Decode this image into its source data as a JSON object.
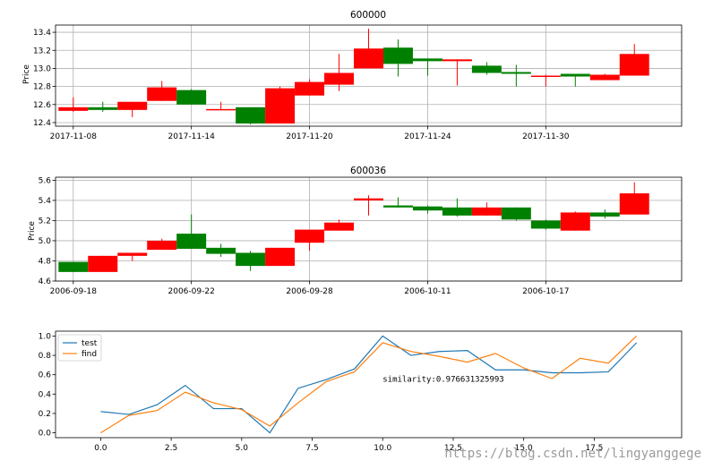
{
  "watermark": "https://blog.csdn.net/lingyanggege",
  "colors": {
    "up": "#ff0000",
    "down": "#008000",
    "grid": "#b0b0b0",
    "test": "#1f77b4",
    "find": "#ff7f0e"
  },
  "chart_data": [
    {
      "type": "candlestick",
      "title": "600000",
      "ylabel": "Price",
      "ylim": [
        12.36,
        13.48
      ],
      "yticks": [
        12.4,
        12.6,
        12.8,
        13.0,
        13.2,
        13.4
      ],
      "ytick_labels": [
        "12.4",
        "12.6",
        "12.8",
        "13.0",
        "13.2",
        "13.4"
      ],
      "xlim": [
        -0.6,
        20.6
      ],
      "xticks": [
        0,
        4,
        8,
        12,
        16
      ],
      "xtick_labels": [
        "2017-11-08",
        "2017-11-14",
        "2017-11-20",
        "2017-11-24",
        "2017-11-30"
      ],
      "grid": true,
      "candles": [
        {
          "o": 12.53,
          "h": 12.68,
          "l": 12.52,
          "c": 12.57
        },
        {
          "o": 12.57,
          "h": 12.63,
          "l": 12.52,
          "c": 12.54
        },
        {
          "o": 12.54,
          "h": 12.63,
          "l": 12.46,
          "c": 12.63
        },
        {
          "o": 12.64,
          "h": 12.86,
          "l": 12.64,
          "c": 12.79
        },
        {
          "o": 12.76,
          "h": 12.77,
          "l": 12.6,
          "c": 12.6
        },
        {
          "o": 12.55,
          "h": 12.63,
          "l": 12.55,
          "c": 12.55
        },
        {
          "o": 12.57,
          "h": 12.57,
          "l": 12.38,
          "c": 12.39
        },
        {
          "o": 12.39,
          "h": 12.8,
          "l": 12.39,
          "c": 12.78
        },
        {
          "o": 12.7,
          "h": 12.88,
          "l": 12.7,
          "c": 12.85
        },
        {
          "o": 12.82,
          "h": 13.16,
          "l": 12.75,
          "c": 12.95
        },
        {
          "o": 13.0,
          "h": 13.44,
          "l": 13.0,
          "c": 13.22
        },
        {
          "o": 13.23,
          "h": 13.32,
          "l": 12.91,
          "c": 13.05
        },
        {
          "o": 13.11,
          "h": 13.11,
          "l": 12.92,
          "c": 13.08
        },
        {
          "o": 13.08,
          "h": 13.1,
          "l": 12.81,
          "c": 13.1
        },
        {
          "o": 13.03,
          "h": 13.07,
          "l": 12.93,
          "c": 12.95
        },
        {
          "o": 12.96,
          "h": 13.04,
          "l": 12.8,
          "c": 12.94
        },
        {
          "o": 12.91,
          "h": 12.93,
          "l": 12.8,
          "c": 12.92
        },
        {
          "o": 12.94,
          "h": 12.94,
          "l": 12.8,
          "c": 12.91
        },
        {
          "o": 12.87,
          "h": 12.94,
          "l": 12.87,
          "c": 12.93
        },
        {
          "o": 12.92,
          "h": 13.27,
          "l": 12.92,
          "c": 13.16
        }
      ]
    },
    {
      "type": "candlestick",
      "title": "600036",
      "ylabel": "Price",
      "ylim": [
        4.6,
        5.63
      ],
      "yticks": [
        4.6,
        4.8,
        5.0,
        5.2,
        5.4,
        5.6
      ],
      "ytick_labels": [
        "4.6",
        "4.8",
        "5.0",
        "5.2",
        "5.4",
        "5.6"
      ],
      "xlim": [
        -0.6,
        20.6
      ],
      "xticks": [
        0,
        4,
        8,
        12,
        16
      ],
      "xtick_labels": [
        "2006-09-18",
        "2006-09-22",
        "2006-09-28",
        "2006-10-11",
        "2006-10-17"
      ],
      "grid": true,
      "candles": [
        {
          "o": 4.79,
          "h": 4.79,
          "l": 4.69,
          "c": 4.69
        },
        {
          "o": 4.69,
          "h": 4.85,
          "l": 4.69,
          "c": 4.85
        },
        {
          "o": 4.85,
          "h": 4.88,
          "l": 4.8,
          "c": 4.88
        },
        {
          "o": 4.91,
          "h": 5.02,
          "l": 4.91,
          "c": 5.0
        },
        {
          "o": 5.07,
          "h": 5.26,
          "l": 4.92,
          "c": 4.92
        },
        {
          "o": 4.93,
          "h": 4.97,
          "l": 4.84,
          "c": 4.87
        },
        {
          "o": 4.88,
          "h": 4.9,
          "l": 4.7,
          "c": 4.75
        },
        {
          "o": 4.75,
          "h": 4.93,
          "l": 4.75,
          "c": 4.93
        },
        {
          "o": 4.98,
          "h": 5.11,
          "l": 4.9,
          "c": 5.11
        },
        {
          "o": 5.1,
          "h": 5.21,
          "l": 5.1,
          "c": 5.18
        },
        {
          "o": 5.4,
          "h": 5.45,
          "l": 5.25,
          "c": 5.42
        },
        {
          "o": 5.35,
          "h": 5.43,
          "l": 5.33,
          "c": 5.33
        },
        {
          "o": 5.34,
          "h": 5.35,
          "l": 5.27,
          "c": 5.3
        },
        {
          "o": 5.33,
          "h": 5.42,
          "l": 5.24,
          "c": 5.25
        },
        {
          "o": 5.25,
          "h": 5.38,
          "l": 5.25,
          "c": 5.33
        },
        {
          "o": 5.33,
          "h": 5.33,
          "l": 5.2,
          "c": 5.21
        },
        {
          "o": 5.2,
          "h": 5.21,
          "l": 5.11,
          "c": 5.12
        },
        {
          "o": 5.1,
          "h": 5.29,
          "l": 5.1,
          "c": 5.28
        },
        {
          "o": 5.28,
          "h": 5.31,
          "l": 5.22,
          "c": 5.24
        },
        {
          "o": 5.26,
          "h": 5.58,
          "l": 5.26,
          "c": 5.47
        }
      ]
    },
    {
      "type": "line",
      "title": "",
      "xlim": [
        -1.6,
        20.6
      ],
      "ylim": [
        -0.05,
        1.05
      ],
      "xticks": [
        0,
        2.5,
        5,
        7.5,
        10,
        12.5,
        15,
        17.5
      ],
      "xtick_labels": [
        "0.0",
        "2.5",
        "5.0",
        "7.5",
        "10.0",
        "12.5",
        "15.0",
        "17.5"
      ],
      "yticks": [
        0,
        0.2,
        0.4,
        0.6,
        0.8,
        1.0
      ],
      "ytick_labels": [
        "0.0",
        "0.2",
        "0.4",
        "0.6",
        "0.8",
        "1.0"
      ],
      "grid": false,
      "legend": "upper-left",
      "annotation": "similarity:0.976631325993",
      "annotation_pos": [
        10.0,
        0.53
      ],
      "x": [
        0,
        1,
        2,
        3,
        4,
        5,
        6,
        7,
        8,
        9,
        10,
        11,
        12,
        13,
        14,
        15,
        16,
        17,
        18,
        19
      ],
      "series": [
        {
          "name": "test",
          "values": [
            0.22,
            0.19,
            0.29,
            0.49,
            0.25,
            0.25,
            0.0,
            0.46,
            0.55,
            0.66,
            1.0,
            0.8,
            0.84,
            0.85,
            0.65,
            0.65,
            0.62,
            0.62,
            0.63,
            0.93
          ]
        },
        {
          "name": "find",
          "values": [
            0.0,
            0.18,
            0.23,
            0.42,
            0.31,
            0.24,
            0.07,
            0.31,
            0.53,
            0.63,
            0.93,
            0.84,
            0.79,
            0.73,
            0.82,
            0.67,
            0.56,
            0.77,
            0.72,
            1.0
          ]
        }
      ]
    }
  ]
}
